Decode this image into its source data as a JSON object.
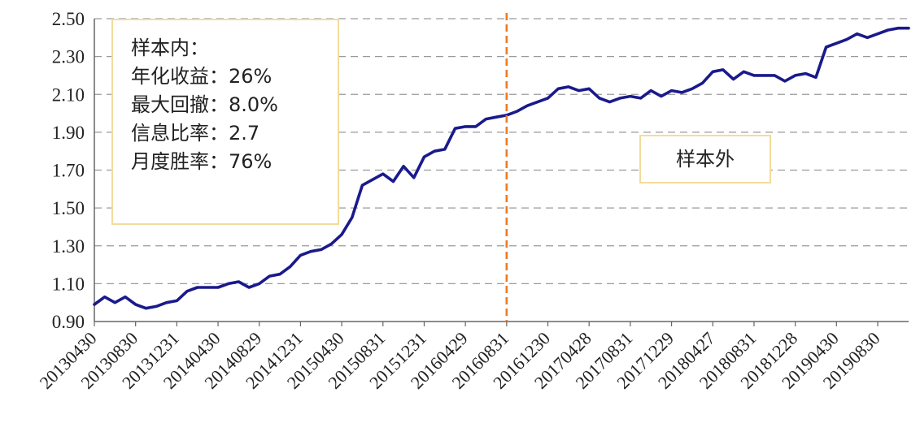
{
  "chart_data": {
    "type": "line",
    "ylim": [
      0.9,
      2.5
    ],
    "yticks": [
      "2.50",
      "2.30",
      "2.10",
      "1.90",
      "1.70",
      "1.50",
      "1.30",
      "1.10",
      "0.90"
    ],
    "xticks": [
      "20130430",
      "20130830",
      "20131231",
      "20140430",
      "20140829",
      "20141231",
      "20150430",
      "20150831",
      "20151231",
      "20160429",
      "20160831",
      "20161230",
      "20170428",
      "20170831",
      "20171229",
      "20180427",
      "20180831",
      "20181228",
      "20190430",
      "20190830"
    ],
    "grid": "horizontal-dashed",
    "split_marker": "20160831",
    "series": [
      {
        "color": "#1a1a8c",
        "x": [
          "2013-04",
          "2013-05",
          "2013-06",
          "2013-07",
          "2013-08",
          "2013-09",
          "2013-10",
          "2013-11",
          "2013-12",
          "2014-01",
          "2014-02",
          "2014-03",
          "2014-04",
          "2014-05",
          "2014-06",
          "2014-07",
          "2014-08",
          "2014-09",
          "2014-10",
          "2014-11",
          "2014-12",
          "2015-01",
          "2015-02",
          "2015-03",
          "2015-04",
          "2015-05",
          "2015-06",
          "2015-07",
          "2015-08",
          "2015-09",
          "2015-10",
          "2015-11",
          "2015-12",
          "2016-01",
          "2016-02",
          "2016-03",
          "2016-04",
          "2016-05",
          "2016-06",
          "2016-07",
          "2016-08",
          "2016-09",
          "2016-10",
          "2016-11",
          "2016-12",
          "2017-01",
          "2017-02",
          "2017-03",
          "2017-04",
          "2017-05",
          "2017-06",
          "2017-07",
          "2017-08",
          "2017-09",
          "2017-10",
          "2017-11",
          "2017-12",
          "2018-01",
          "2018-02",
          "2018-03",
          "2018-04",
          "2018-05",
          "2018-06",
          "2018-07",
          "2018-08",
          "2018-09",
          "2018-10",
          "2018-11",
          "2018-12",
          "2019-01",
          "2019-02",
          "2019-03",
          "2019-04",
          "2019-05",
          "2019-06",
          "2019-07",
          "2019-08",
          "2019-09",
          "2019-10",
          "2019-11"
        ],
        "values": [
          0.99,
          1.03,
          1.0,
          1.03,
          0.99,
          0.97,
          0.98,
          1.0,
          1.01,
          1.06,
          1.08,
          1.08,
          1.08,
          1.1,
          1.11,
          1.08,
          1.1,
          1.14,
          1.15,
          1.19,
          1.25,
          1.27,
          1.28,
          1.31,
          1.36,
          1.45,
          1.62,
          1.65,
          1.68,
          1.64,
          1.72,
          1.66,
          1.77,
          1.8,
          1.81,
          1.92,
          1.93,
          1.93,
          1.97,
          1.98,
          1.99,
          2.01,
          2.04,
          2.06,
          2.08,
          2.13,
          2.14,
          2.12,
          2.13,
          2.08,
          2.06,
          2.08,
          2.09,
          2.08,
          2.12,
          2.09,
          2.12,
          2.11,
          2.13,
          2.16,
          2.22,
          2.23,
          2.18,
          2.22,
          2.2,
          2.2,
          2.2,
          2.17,
          2.2,
          2.21,
          2.19,
          2.35,
          2.37,
          2.39,
          2.42,
          2.4,
          2.42,
          2.44,
          2.45,
          2.45
        ]
      }
    ],
    "annotations": {
      "in_sample": [
        "样本内：",
        "年化收益：26%",
        "最大回撤：8.0%",
        "信息比率：2.7",
        "月度胜率：76%"
      ],
      "out_sample": "样本外"
    }
  }
}
